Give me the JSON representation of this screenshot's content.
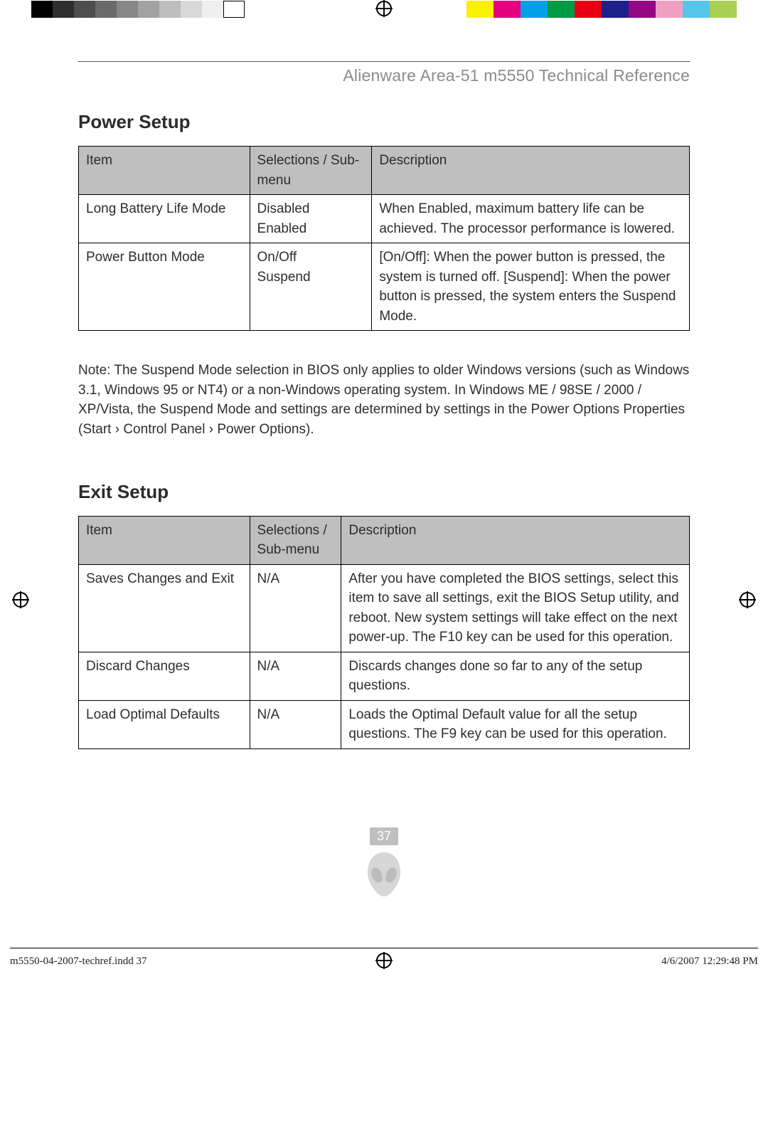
{
  "topbar": {
    "grayscale": [
      "#000000",
      "#2e2e2e",
      "#4d4d4d",
      "#6a6a6a",
      "#878787",
      "#a2a2a2",
      "#bdbdbd",
      "#d8d8d8",
      "#efefef"
    ],
    "colors": [
      "#fdf100",
      "#e4007f",
      "#00a0e9",
      "#009944",
      "#e60012",
      "#1d2088",
      "#920783",
      "#f19ec2",
      "#56c5ec",
      "#aacf52"
    ]
  },
  "docTitle": "Alienware Area-51 m5550 Technical Reference",
  "section1": {
    "title": "Power Setup",
    "columns": [
      "Item",
      "Selections / Sub-menu",
      "Description"
    ],
    "colWidths": [
      "28%",
      "20%",
      "52%"
    ],
    "rows": [
      {
        "item": "Long Battery Life Mode",
        "sel": "Disabled\nEnabled",
        "desc": "When Enabled, maximum battery life can be achieved. The processor performance is lowered."
      },
      {
        "item": "Power Button Mode",
        "sel": "On/Off\nSuspend",
        "desc": "[On/Off]: When the power button is pressed, the system is turned off. [Suspend]: When the power button is pressed, the system enters the Suspend Mode."
      }
    ]
  },
  "note": "Note: The Suspend Mode selection in BIOS only applies to older Windows versions (such as Windows 3.1, Windows 95 or NT4) or a non-Windows operating system. In Windows ME / 98SE / 2000 / XP/Vista, the Suspend Mode and settings are determined by settings in the Power Options Properties (Start › Control Panel › Power Options).",
  "section2": {
    "title": "Exit Setup",
    "columns": [
      "Item",
      "Selections / Sub-menu",
      "Description"
    ],
    "colWidths": [
      "28%",
      "15%",
      "57%"
    ],
    "rows": [
      {
        "item": "Saves Changes and Exit",
        "sel": "N/A",
        "desc": "After you have completed the BIOS settings, select this item to save all settings, exit the BIOS Setup utility, and reboot. New system settings will take effect on the next power-up. The F10 key can be used for this operation."
      },
      {
        "item": "Discard Changes",
        "sel": "N/A",
        "desc": "Discards changes done so far to any of the setup questions."
      },
      {
        "item": "Load Optimal Defaults",
        "sel": "N/A",
        "desc": "Loads the Optimal Default value for all the setup questions. The F9 key can be used for this operation."
      }
    ]
  },
  "pageNumber": "37",
  "footer": {
    "left": "m5550-04-2007-techref.indd   37",
    "right": "4/6/2007   12:29:48 PM"
  }
}
